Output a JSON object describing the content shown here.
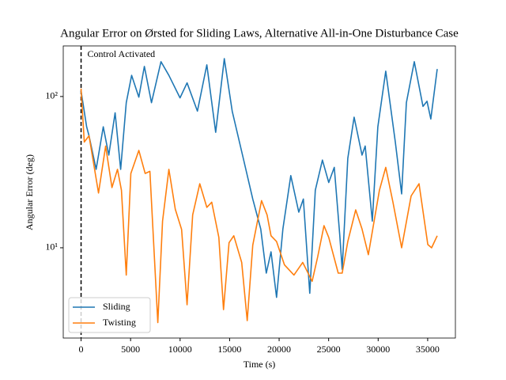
{
  "chart_data": {
    "type": "line",
    "title": "Angular Error on Ørsted for Sliding Laws, Alternative All-in-One Disturbance Case",
    "x_label": "Time (s)",
    "y_label": "Angular Error (deg)",
    "log_y": true,
    "xlim": [
      -1800,
      37800
    ],
    "ylim": [
      2.53,
      216
    ],
    "xticks": [
      0,
      5000,
      10000,
      15000,
      20000,
      25000,
      30000,
      35000
    ],
    "yticks": [
      {
        "value": 10,
        "label": "10¹"
      },
      {
        "value": 100,
        "label": "10²"
      }
    ],
    "legend": "lower left",
    "vline": {
      "x": 0,
      "label": "Control Activated"
    },
    "series": [
      {
        "name": "Sliding",
        "color": "#1f77b4",
        "x": [
          0,
          560,
          800,
          1520,
          2240,
          2800,
          3440,
          4000,
          4560,
          5110,
          5830,
          6390,
          7110,
          8070,
          8870,
          9990,
          10700,
          11750,
          12700,
          13590,
          14460,
          15260,
          16380,
          17340,
          18140,
          18700,
          19180,
          19740,
          20380,
          21180,
          21980,
          22450,
          23090,
          23650,
          24370,
          25010,
          25570,
          26130,
          26370,
          26930,
          27570,
          28370,
          28690,
          29410,
          29970,
          30770,
          31730,
          32370,
          32850,
          33650,
          34530,
          34930,
          35320,
          35960
        ],
        "values": [
          109,
          63,
          55,
          33,
          63,
          41,
          78,
          33,
          91,
          138,
          99,
          158,
          91,
          170,
          138,
          98,
          123,
          80,
          162,
          58,
          178,
          80,
          39,
          21,
          13.3,
          6.8,
          9.4,
          4.7,
          13.3,
          30,
          17.2,
          21,
          5.0,
          24,
          38,
          27,
          34,
          12,
          7.2,
          39,
          73,
          41,
          47,
          15,
          63,
          147,
          50,
          22.7,
          91,
          170,
          86,
          93,
          71,
          152
        ]
      },
      {
        "name": "Twisting",
        "color": "#ff7f0e",
        "x": [
          0,
          320,
          800,
          1760,
          2480,
          3120,
          3680,
          4080,
          4560,
          5030,
          5830,
          6470,
          6950,
          7750,
          8230,
          8870,
          9510,
          10150,
          10700,
          11270,
          11990,
          12700,
          13190,
          13910,
          14380,
          14940,
          15420,
          16220,
          16780,
          17340,
          18220,
          18780,
          19180,
          19740,
          20540,
          21500,
          22380,
          23330,
          23890,
          24530,
          25010,
          25970,
          26370,
          26930,
          27730,
          28370,
          29010,
          30130,
          30770,
          31490,
          32370,
          33330,
          34130,
          35010,
          35400,
          35960
        ],
        "values": [
          113,
          50,
          55,
          23,
          47,
          25,
          33,
          24,
          6.6,
          31,
          44,
          31,
          32,
          3.2,
          15,
          33,
          18,
          13.2,
          4.2,
          16.5,
          26.5,
          18.5,
          20,
          11.7,
          3.9,
          10.8,
          12,
          8.0,
          3.3,
          10.4,
          20.5,
          16.5,
          12,
          11,
          7.7,
          6.6,
          8.0,
          6.0,
          8.7,
          14,
          11.7,
          6.8,
          6.8,
          11,
          17.8,
          13.3,
          9,
          24,
          34,
          20,
          10,
          22,
          26.5,
          10.5,
          10,
          12
        ]
      }
    ]
  }
}
